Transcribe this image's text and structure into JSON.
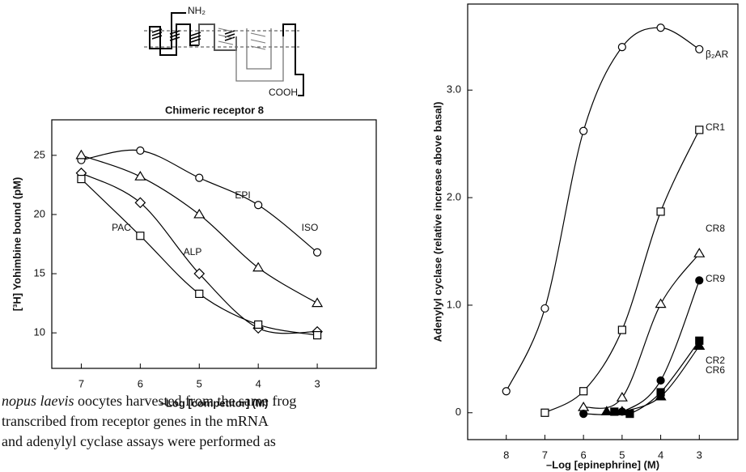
{
  "diagram": {
    "labels": [
      "NH₂",
      "COOH"
    ],
    "caption": "Chimeric receptor 8"
  },
  "chart_data": [
    {
      "type": "line",
      "xlabel": "–Log [competitor] (M)",
      "ylabel": "[³H] Yohimbine bound (pM)",
      "xlim": [
        7.5,
        2
      ],
      "ylim": [
        7,
        28
      ],
      "xticks": [
        7,
        6,
        5,
        4,
        3
      ],
      "yticks": [
        10,
        15,
        20,
        25
      ],
      "series": [
        {
          "name": "ISO",
          "color": "#000",
          "marker": "circle-open",
          "x": [
            7,
            6,
            5,
            4,
            3
          ],
          "values": [
            24.6,
            25.4,
            23.1,
            20.8,
            16.8
          ]
        },
        {
          "name": "EPI",
          "color": "#000",
          "marker": "triangle-open",
          "x": [
            7,
            6,
            5,
            4,
            3
          ],
          "values": [
            25,
            23.2,
            20,
            15.5,
            12.5
          ]
        },
        {
          "name": "ALP",
          "color": "#000",
          "marker": "diamond-open",
          "x": [
            7,
            6,
            5,
            4,
            3
          ],
          "values": [
            23.5,
            21,
            15,
            10.4,
            10.1
          ]
        },
        {
          "name": "PAC",
          "color": "#000",
          "marker": "square-open",
          "x": [
            7,
            6,
            5,
            4,
            3
          ],
          "values": [
            23,
            18.2,
            13.3,
            10.7,
            9.8
          ]
        }
      ]
    },
    {
      "type": "line",
      "xlabel": "–Log [epinephrine] (M)",
      "ylabel": "Adenylyl cyclase (relative increase above basal)",
      "xlim": [
        9,
        2
      ],
      "ylim": [
        -0.25,
        3.8
      ],
      "xticks": [
        8,
        7,
        6,
        5,
        4,
        3
      ],
      "yticks": [
        0,
        {
          "value": 1,
          "label": "1.0"
        },
        {
          "value": 2,
          "label": "2.0"
        },
        {
          "value": 3,
          "label": "3.0"
        }
      ],
      "series": [
        {
          "name": "β₂AR",
          "color": "#000",
          "marker": "circle-open",
          "x": [
            8,
            7,
            6,
            5,
            4,
            3
          ],
          "values": [
            0.2,
            0.97,
            2.62,
            3.4,
            3.58,
            3.38
          ]
        },
        {
          "name": "CR1",
          "color": "#000",
          "marker": "square-open",
          "x": [
            7,
            6,
            5,
            4,
            3
          ],
          "values": [
            0,
            0.2,
            0.77,
            1.87,
            2.63
          ]
        },
        {
          "name": "CR8",
          "color": "#000",
          "marker": "triangle-open",
          "x": [
            6,
            5,
            4,
            3
          ],
          "values": [
            0.05,
            0.14,
            1.01,
            1.48
          ]
        },
        {
          "name": "CR9",
          "color": "#000",
          "marker": "circle-filled",
          "x": [
            6,
            5,
            4,
            3
          ],
          "values": [
            -0.01,
            0.01,
            0.3,
            1.23
          ]
        },
        {
          "name": "CR2",
          "color": "#000",
          "marker": "square-filled",
          "x": [
            5.2,
            4.8,
            4,
            3
          ],
          "values": [
            0.01,
            -0.01,
            0.19,
            0.67
          ]
        },
        {
          "name": "CR6",
          "color": "#000",
          "marker": "triangle-filled",
          "x": [
            5.4,
            5,
            4,
            3
          ],
          "values": [
            0.01,
            0.01,
            0.15,
            0.62
          ]
        }
      ]
    }
  ],
  "body_text": {
    "lines": [
      {
        "italic": "nopus laevis",
        "text": " oocytes harvested from the same frog"
      },
      {
        "text": "transcribed from receptor genes in the mRNA"
      },
      {
        "text": "and adenylyl cyclase assays were performed as"
      }
    ]
  }
}
